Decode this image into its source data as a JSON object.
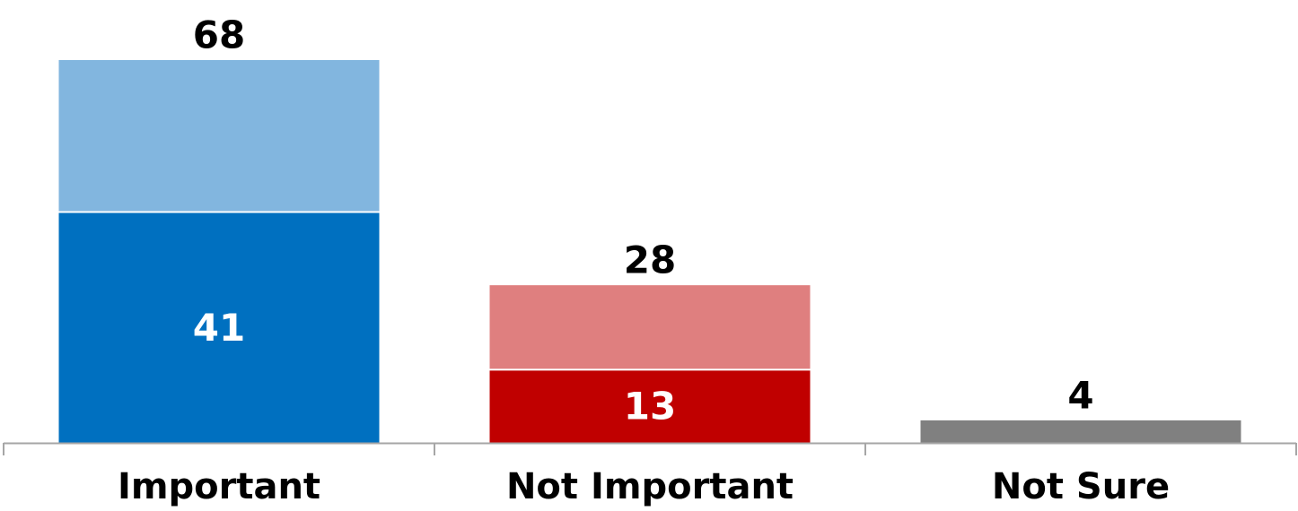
{
  "chart_data": {
    "type": "bar",
    "stacked": true,
    "categories": [
      "Important",
      "Not Important",
      "Not Sure"
    ],
    "series": [
      {
        "values": [
          41,
          13,
          4
        ],
        "colors": [
          "#0070C0",
          "#C00000",
          "#808080"
        ]
      },
      {
        "values": [
          27,
          15,
          0
        ],
        "colors": [
          "#82B6DF",
          "#DF7F7F",
          "#808080"
        ]
      }
    ],
    "totals": [
      68,
      28,
      4
    ],
    "inner_labels": [
      "41",
      "13",
      ""
    ],
    "total_labels": [
      "68",
      "28",
      "4"
    ],
    "ylim": [
      0,
      68
    ],
    "grid": false,
    "legend": "none",
    "axis_color": "#A6A6A6"
  }
}
